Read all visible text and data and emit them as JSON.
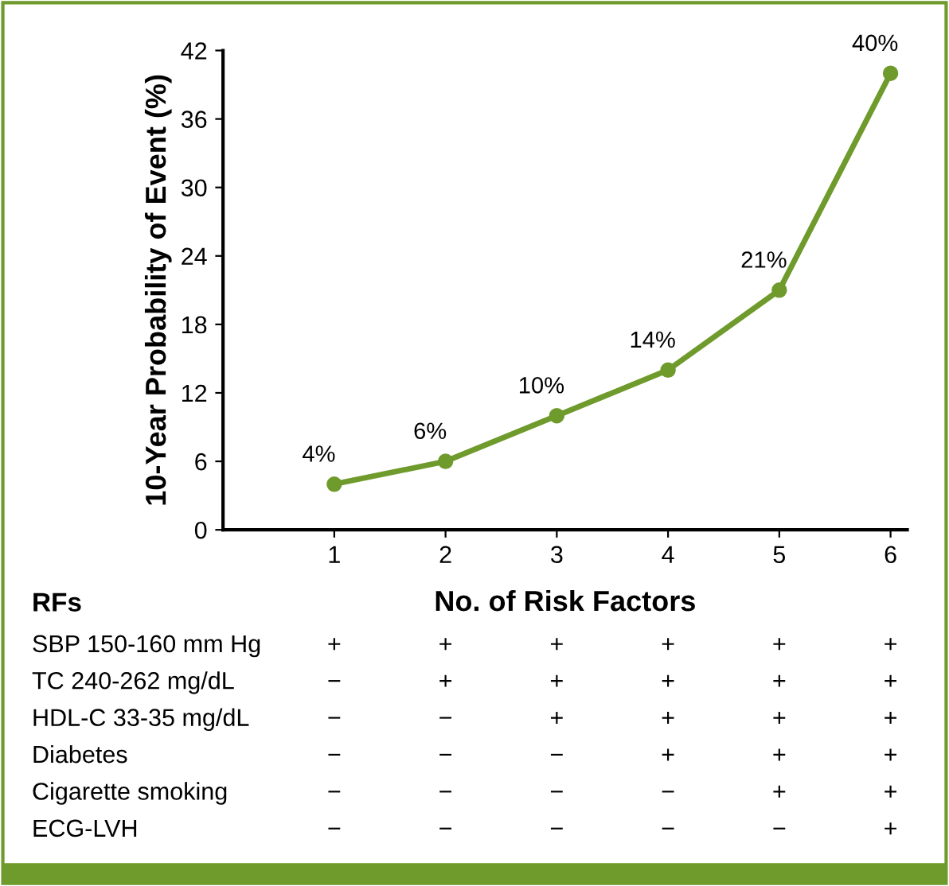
{
  "chart_data": {
    "type": "line",
    "xlabel": "No. of Risk Factors",
    "ylabel": "10-Year Probability of Event (%)",
    "x": [
      1,
      2,
      3,
      4,
      5,
      6
    ],
    "series": [
      {
        "color": "#6f9a2c",
        "values": [
          4,
          6,
          10,
          14,
          21,
          40
        ],
        "value_labels": [
          "4%",
          "6%",
          "10%",
          "14%",
          "21%",
          "40%"
        ]
      }
    ],
    "xlim": [
      0,
      6.15
    ],
    "xticks": [
      1,
      2,
      3,
      4,
      5,
      6
    ],
    "ylim": [
      0,
      42
    ],
    "yticks": [
      0,
      6,
      12,
      18,
      24,
      30,
      36,
      42
    ],
    "marker": "circle",
    "line_style": "solid",
    "grid": false,
    "legend": false,
    "annotations": [
      "RFs",
      "SBP 150-160 mm Hg",
      "+",
      "+",
      "+",
      "+",
      "+",
      "+",
      "TC 240-262 mg/dL",
      "−",
      "+",
      "+",
      "+",
      "+",
      "+",
      "HDL-C 33-35 mg/dL",
      "−",
      "−",
      "+",
      "+",
      "+",
      "+",
      "Diabetes",
      "−",
      "−",
      "−",
      "+",
      "+",
      "+",
      "Cigarette smoking",
      "−",
      "−",
      "−",
      "−",
      "+",
      "+",
      "ECG-LVH",
      "−",
      "−",
      "−",
      "−",
      "−",
      "+"
    ]
  }
}
